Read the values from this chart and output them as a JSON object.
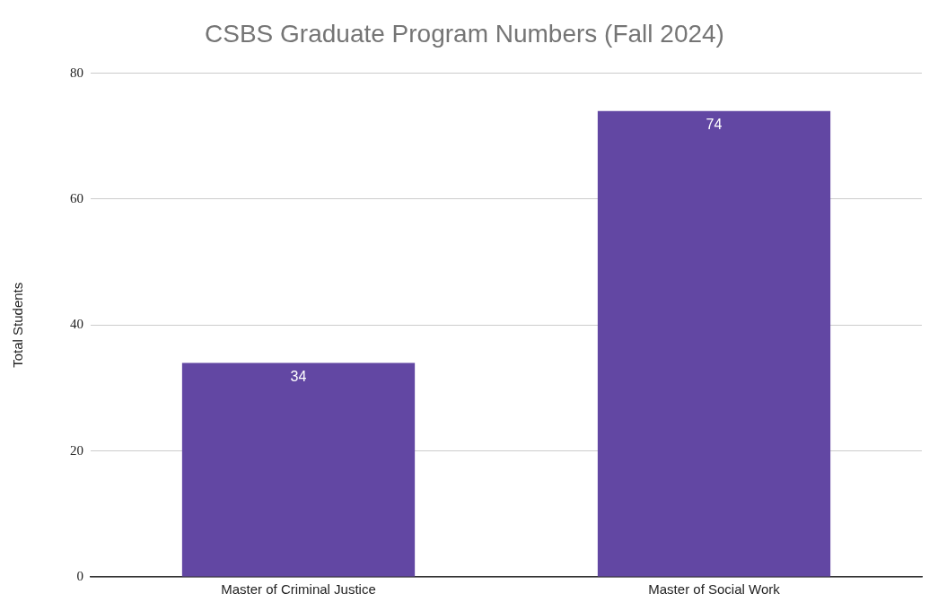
{
  "chart_data": {
    "type": "bar",
    "title": "CSBS Graduate Program Numbers (Fall 2024)",
    "ylabel": "Total Students",
    "categories": [
      "Master of Criminal Justice",
      "Master of Social Work"
    ],
    "values": [
      34,
      74
    ],
    "color": "#6247a3",
    "ylim": [
      0,
      80
    ],
    "yticks": [
      0,
      20,
      40,
      60,
      80
    ],
    "grid": "y",
    "data_labels": true
  }
}
